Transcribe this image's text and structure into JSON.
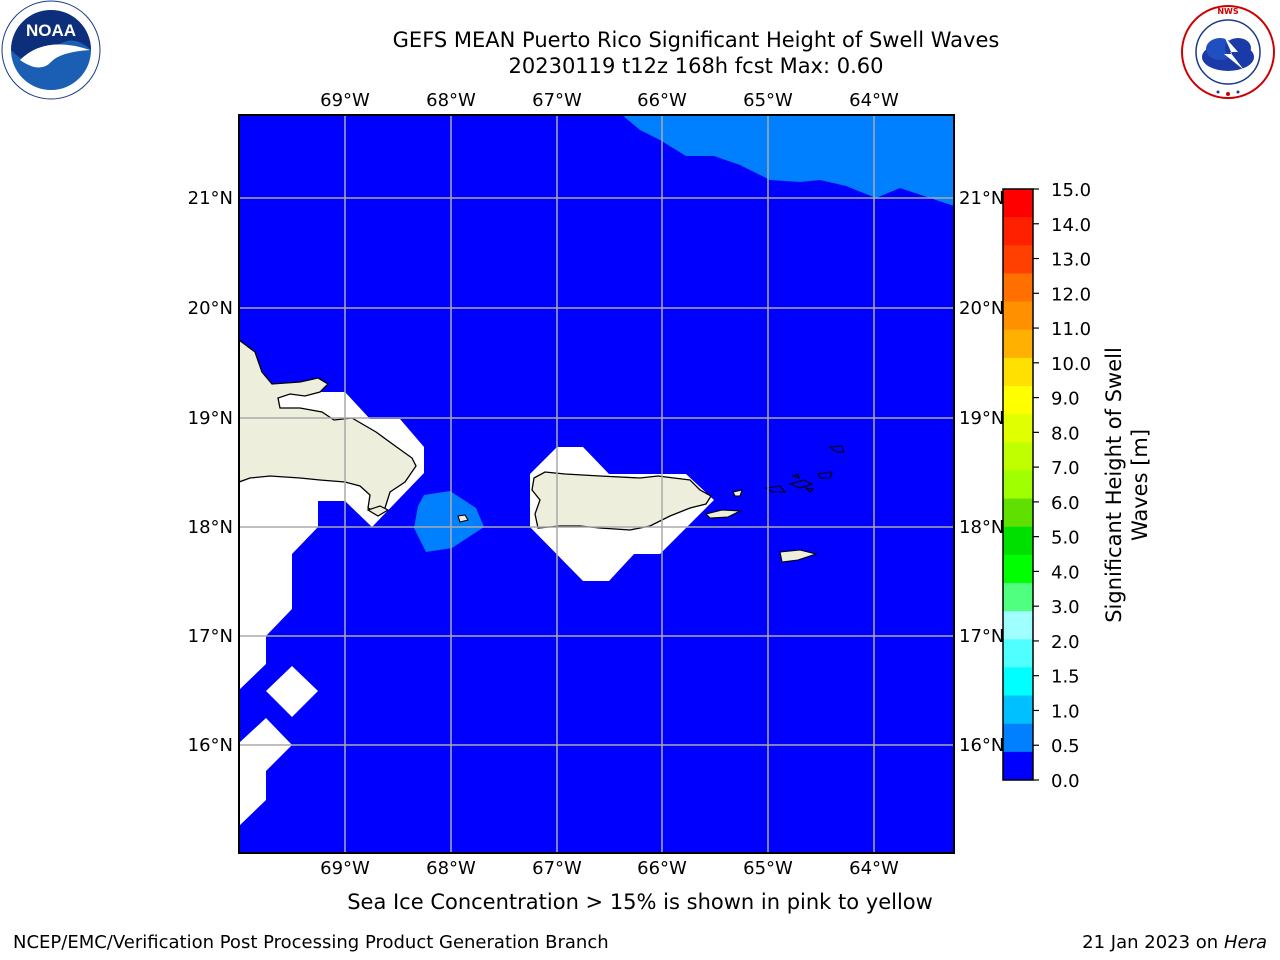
{
  "title": {
    "line1": "GEFS MEAN Puerto Rico Significant Height of Swell Waves",
    "line2": "20230119 t12z 168h fcst   Max: 0.60"
  },
  "logos": {
    "left_text": "NOAA",
    "left_ring": "NATIONAL OCEANIC AND ATMOSPHERIC ADMINISTRATION · U.S. DEPARTMENT OF COMMERCE",
    "right_ring": "NATIONAL WEATHER SERVICE"
  },
  "map": {
    "lon_labels": [
      "69°W",
      "68°W",
      "67°W",
      "66°W",
      "65°W",
      "64°W"
    ],
    "lat_labels": [
      "21°N",
      "20°N",
      "19°N",
      "18°N",
      "17°N",
      "16°N"
    ],
    "ocean_color": "#0000ff",
    "swell_light_color": "#0080ff",
    "land_color": "#eeeedd",
    "mask_color": "#ffffff"
  },
  "colorbar": {
    "label_line1": "Significant Height of Swell",
    "label_line2": "Waves [m]",
    "ticks": [
      "15.0",
      "14.0",
      "13.0",
      "12.0",
      "11.0",
      "10.0",
      "9.0",
      "8.0",
      "7.0",
      "6.0",
      "5.0",
      "4.0",
      "3.0",
      "2.0",
      "1.5",
      "1.0",
      "0.5",
      "0.0"
    ],
    "colors_top_to_bottom": [
      "#ff0000",
      "#ff2000",
      "#ff4000",
      "#ff7000",
      "#ff9000",
      "#ffb000",
      "#ffe000",
      "#ffff00",
      "#e0ff00",
      "#c0ff00",
      "#a0ff00",
      "#60e000",
      "#00e000",
      "#00ff00",
      "#50ff80",
      "#a0ffff",
      "#50ffff",
      "#00ffff",
      "#00c0ff",
      "#0080ff",
      "#0000ff"
    ]
  },
  "caption": "Sea Ice Concentration > 15% is shown in pink to yellow",
  "footer": {
    "left": "NCEP/EMC/Verification Post Processing Product Generation Branch",
    "date": "21 Jan 2023 on ",
    "machine": "Hera"
  }
}
